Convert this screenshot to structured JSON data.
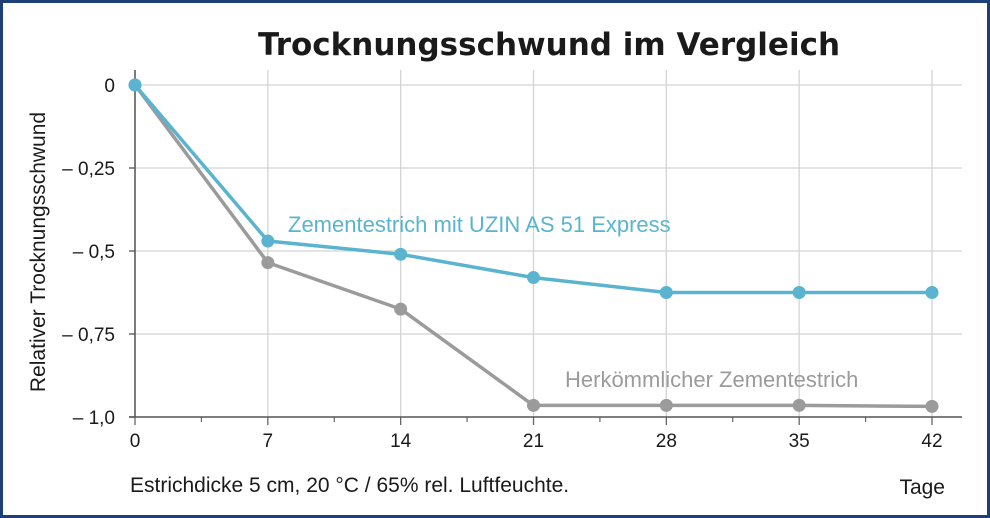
{
  "chart_data": {
    "type": "line",
    "title": "Trocknungsschwund im Vergleich",
    "xlabel": "Tage",
    "ylabel": "Relativer Trocknungsschwund",
    "note": "Estrichdicke 5 cm, 20 °C / 65% rel. Luftfeuchte.",
    "x": [
      0,
      7,
      14,
      21,
      28,
      35,
      42
    ],
    "xlim": [
      0,
      42
    ],
    "ylim": [
      -1.0,
      0
    ],
    "xticks": [
      0,
      7,
      14,
      21,
      28,
      35,
      42
    ],
    "xtick_labels": [
      "0",
      "7",
      "14",
      "21",
      "28",
      "35",
      "42"
    ],
    "yticks": [
      0,
      -0.25,
      -0.5,
      -0.75,
      -1.0
    ],
    "ytick_labels": [
      "0",
      "– 0,25",
      "– 0,5",
      "– 0,75",
      "– 1,0"
    ],
    "grid": true,
    "series": [
      {
        "name": "Zementestrich mit UZIN AS 51 Express",
        "color": "#5ab4d0",
        "values": [
          0,
          -0.47,
          -0.51,
          -0.58,
          -0.625,
          -0.625,
          -0.625
        ]
      },
      {
        "name": "Herkömmlicher Zementestrich",
        "color": "#9b9b9b",
        "values": [
          0,
          -0.535,
          -0.675,
          -0.965,
          -0.965,
          -0.965,
          -0.968
        ]
      }
    ]
  }
}
